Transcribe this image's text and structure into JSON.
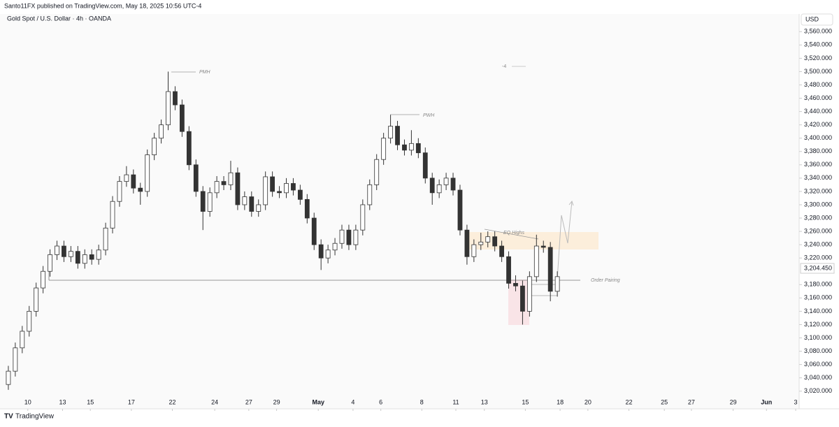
{
  "header": {
    "publisher": "Santo11FX published on TradingView.com, May 18, 2025 10:56 UTC-4",
    "symbol": "Gold Spot / U.S. Dollar · 4h · OANDA"
  },
  "footer": {
    "brand": "TradingView"
  },
  "chart_data": {
    "type": "candlestick",
    "currency": "USD",
    "open": [
      3030,
      3050,
      3085,
      3110,
      3140,
      3175,
      3200,
      3225,
      3238,
      3222,
      3230,
      3212,
      3225,
      3218,
      3232,
      3265,
      3305,
      3335,
      3345,
      3325,
      3320,
      3375,
      3400,
      3420,
      3470,
      3450,
      3410,
      3360,
      3320,
      3290,
      3318,
      3335,
      3330,
      3348,
      3300,
      3312,
      3290,
      3300,
      3342,
      3320,
      3318,
      3332,
      3322,
      3308,
      3280,
      3240,
      3220,
      3232,
      3242,
      3262,
      3240,
      3262,
      3300,
      3330,
      3368,
      3400,
      3418,
      3390,
      3382,
      3392,
      3378,
      3340,
      3318,
      3330,
      3340,
      3322,
      3262,
      3222,
      3240,
      3244,
      3252,
      3238,
      3222,
      3182,
      3178,
      3140,
      3192,
      3238,
      3236,
      3170
    ],
    "high": [
      3058,
      3093,
      3118,
      3148,
      3183,
      3208,
      3233,
      3246,
      3246,
      3238,
      3238,
      3233,
      3233,
      3240,
      3273,
      3313,
      3343,
      3358,
      3353,
      3333,
      3383,
      3408,
      3428,
      3500,
      3478,
      3458,
      3418,
      3368,
      3328,
      3326,
      3343,
      3343,
      3366,
      3356,
      3320,
      3320,
      3308,
      3350,
      3350,
      3328,
      3340,
      3340,
      3330,
      3316,
      3288,
      3248,
      3240,
      3250,
      3270,
      3270,
      3270,
      3308,
      3338,
      3376,
      3408,
      3435,
      3426,
      3398,
      3412,
      3400,
      3386,
      3348,
      3338,
      3348,
      3348,
      3330,
      3270,
      3248,
      3258,
      3260,
      3260,
      3246,
      3230,
      3194,
      3186,
      3200,
      3255,
      3246,
      3244,
      3200
    ],
    "low": [
      3022,
      3042,
      3077,
      3102,
      3132,
      3167,
      3192,
      3217,
      3214,
      3214,
      3204,
      3204,
      3210,
      3210,
      3224,
      3257,
      3297,
      3327,
      3317,
      3300,
      3312,
      3367,
      3392,
      3412,
      3442,
      3402,
      3352,
      3312,
      3262,
      3282,
      3310,
      3322,
      3322,
      3292,
      3292,
      3282,
      3282,
      3292,
      3312,
      3310,
      3310,
      3314,
      3300,
      3272,
      3232,
      3202,
      3212,
      3224,
      3234,
      3232,
      3232,
      3254,
      3292,
      3322,
      3360,
      3392,
      3382,
      3374,
      3374,
      3370,
      3332,
      3300,
      3310,
      3322,
      3314,
      3254,
      3210,
      3214,
      3232,
      3236,
      3230,
      3214,
      3174,
      3170,
      3120,
      3132,
      3184,
      3228,
      3155,
      3162
    ],
    "close": [
      3050,
      3085,
      3110,
      3140,
      3175,
      3200,
      3225,
      3238,
      3222,
      3230,
      3212,
      3225,
      3218,
      3232,
      3265,
      3305,
      3335,
      3345,
      3325,
      3320,
      3375,
      3400,
      3420,
      3470,
      3450,
      3410,
      3360,
      3320,
      3290,
      3318,
      3335,
      3330,
      3348,
      3300,
      3312,
      3290,
      3300,
      3342,
      3320,
      3318,
      3332,
      3322,
      3308,
      3280,
      3240,
      3220,
      3232,
      3242,
      3262,
      3240,
      3262,
      3300,
      3330,
      3368,
      3400,
      3418,
      3390,
      3382,
      3392,
      3378,
      3340,
      3318,
      3330,
      3340,
      3322,
      3262,
      3222,
      3240,
      3244,
      3252,
      3238,
      3222,
      3182,
      3178,
      3140,
      3192,
      3238,
      3236,
      3170,
      3192
    ],
    "up_color": "#ffffff",
    "down_color": "#333333",
    "wick_color": "#333333",
    "xlim": [
      -1.2,
      113.8
    ],
    "xticks": [
      {
        "value": 2.8,
        "label": "10"
      },
      {
        "value": 7.8,
        "label": "13"
      },
      {
        "value": 11.8,
        "label": "15"
      },
      {
        "value": 17.7,
        "label": "17"
      },
      {
        "value": 23.6,
        "label": "22"
      },
      {
        "value": 29.7,
        "label": "24"
      },
      {
        "value": 34.6,
        "label": "27"
      },
      {
        "value": 38.6,
        "label": "29"
      },
      {
        "value": 44.6,
        "label": "May"
      },
      {
        "value": 49.6,
        "label": "4"
      },
      {
        "value": 53.6,
        "label": "6"
      },
      {
        "value": 59.5,
        "label": "8"
      },
      {
        "value": 64.4,
        "label": "11"
      },
      {
        "value": 68.5,
        "label": "13"
      },
      {
        "value": 74.4,
        "label": "15"
      },
      {
        "value": 79.4,
        "label": "18"
      },
      {
        "value": 83.4,
        "label": "20"
      },
      {
        "value": 89.3,
        "label": "22"
      },
      {
        "value": 94.4,
        "label": "25"
      },
      {
        "value": 98.3,
        "label": "27"
      },
      {
        "value": 104.3,
        "label": "29"
      },
      {
        "value": 109.1,
        "label": "Jun"
      },
      {
        "value": 113.3,
        "label": "3"
      }
    ],
    "ylim": [
      3005,
      3575
    ],
    "yticks": [
      {
        "value": 3020,
        "label": "3,020.000"
      },
      {
        "value": 3040,
        "label": "3,040.000"
      },
      {
        "value": 3060,
        "label": "3,060.000"
      },
      {
        "value": 3080,
        "label": "3,080.000"
      },
      {
        "value": 3100,
        "label": "3,100.000"
      },
      {
        "value": 3120,
        "label": "3,120.000"
      },
      {
        "value": 3140,
        "label": "3,140.000"
      },
      {
        "value": 3160,
        "label": "3,160.000"
      },
      {
        "value": 3180,
        "label": "3,180.000"
      },
      {
        "value": 3220,
        "label": "3,220.000"
      },
      {
        "value": 3240,
        "label": "3,240.000"
      },
      {
        "value": 3260,
        "label": "3,260.000"
      },
      {
        "value": 3280,
        "label": "3,280.000"
      },
      {
        "value": 3300,
        "label": "3,300.000"
      },
      {
        "value": 3320,
        "label": "3,320.000"
      },
      {
        "value": 3340,
        "label": "3,340.000"
      },
      {
        "value": 3360,
        "label": "3,360.000"
      },
      {
        "value": 3380,
        "label": "3,380.000"
      },
      {
        "value": 3400,
        "label": "3,400.000"
      },
      {
        "value": 3420,
        "label": "3,420.000"
      },
      {
        "value": 3440,
        "label": "3,440.000"
      },
      {
        "value": 3460,
        "label": "3,460.000"
      },
      {
        "value": 3480,
        "label": "3,480.000"
      },
      {
        "value": 3500,
        "label": "3,500.000"
      },
      {
        "value": 3520,
        "label": "3,520.000"
      },
      {
        "value": 3540,
        "label": "3,540.000"
      },
      {
        "value": 3560,
        "label": "3,560.000"
      }
    ],
    "last_price": {
      "value": 3204.45,
      "label": "3,204.450"
    },
    "annotations": {
      "pmh": "PMH",
      "pwh": "PWH",
      "eq_highs": "EQ Highs",
      "order_pairing": "Order Pairing",
      "count": "-4"
    }
  }
}
